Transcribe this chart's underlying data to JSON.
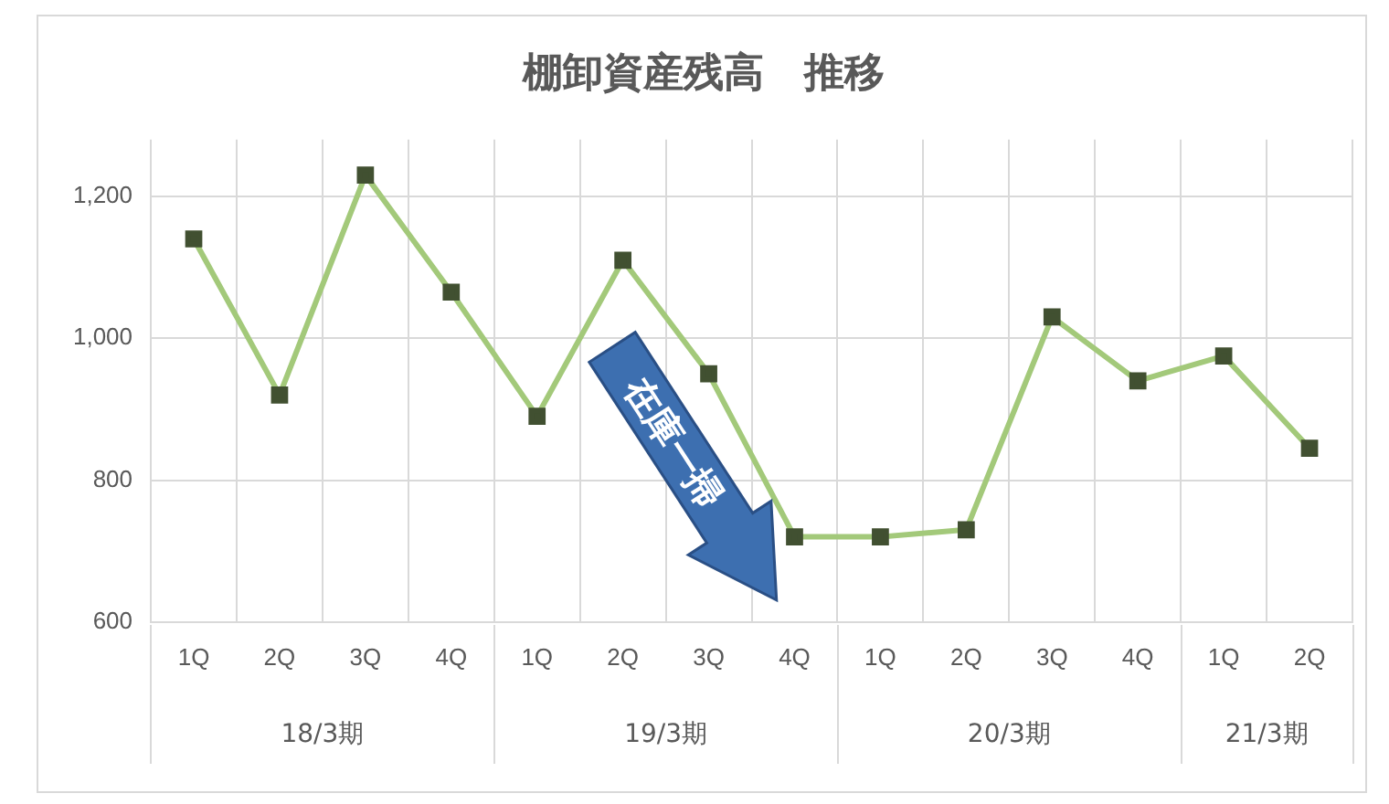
{
  "chart_data": {
    "type": "line",
    "title": "棚卸資産残高　推移",
    "categories": [
      "1Q",
      "2Q",
      "3Q",
      "4Q",
      "1Q",
      "2Q",
      "3Q",
      "4Q",
      "1Q",
      "2Q",
      "3Q",
      "4Q",
      "1Q",
      "2Q"
    ],
    "series": [
      {
        "color": "#a3c97a",
        "values": [
          1140,
          920,
          1230,
          1065,
          890,
          1110,
          950,
          720,
          720,
          730,
          1030,
          940,
          975,
          845
        ]
      }
    ],
    "ylim": [
      600,
      1280
    ],
    "yticks": [
      600,
      800,
      {
        "value": 1000,
        "label": "1,000"
      },
      {
        "value": 1200,
        "label": "1,200"
      }
    ],
    "grid": true,
    "legend": false,
    "marker": "square",
    "line_style": "solid",
    "annotations": [
      "18/3期",
      "19/3期",
      "20/3期",
      "21/3期",
      "在庫一掃"
    ]
  }
}
